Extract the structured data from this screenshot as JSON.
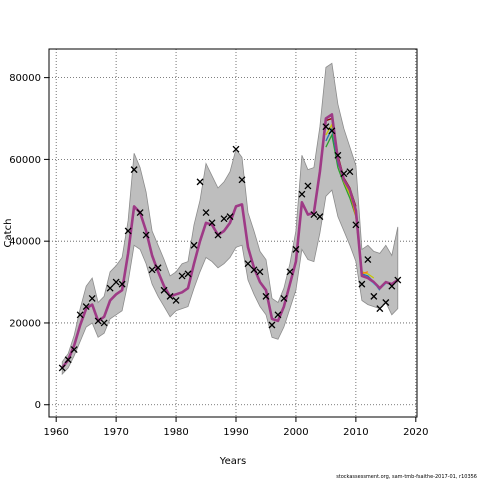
{
  "chart_data": {
    "type": "line",
    "xlabel": "Years",
    "ylabel": "Catch",
    "xlim": [
      1958.8,
      2020.2
    ],
    "ylim": [
      -3000,
      87000
    ],
    "x_ticks": [
      1960,
      1970,
      1980,
      1990,
      2000,
      2010,
      2020
    ],
    "y_ticks": [
      0,
      20000,
      40000,
      60000,
      80000
    ],
    "grid": true,
    "footer": "stockassessment.org, sam-tmb-fsaithe-2017-01, r10356",
    "colors": {
      "band": "#bebebe",
      "band_edge": "#8c8c8c",
      "main_line": "#9e3a86",
      "points": "#000000"
    },
    "observed": {
      "x": [
        1961,
        1962,
        1963,
        1964,
        1965,
        1966,
        1967,
        1968,
        1969,
        1970,
        1971,
        1972,
        1973,
        1974,
        1975,
        1976,
        1977,
        1978,
        1979,
        1980,
        1981,
        1982,
        1983,
        1984,
        1985,
        1986,
        1987,
        1988,
        1989,
        1990,
        1991,
        1992,
        1993,
        1994,
        1995,
        1996,
        1997,
        1998,
        1999,
        2000,
        2001,
        2002,
        2003,
        2004,
        2005,
        2006,
        2007,
        2008,
        2009,
        2010,
        2011,
        2012,
        2013,
        2014,
        2015,
        2016,
        2017
      ],
      "y": [
        9000,
        11000,
        13500,
        22000,
        24000,
        26000,
        20500,
        20000,
        28500,
        30000,
        29500,
        42500,
        57500,
        47000,
        41500,
        33000,
        33500,
        28000,
        26500,
        25500,
        31500,
        32000,
        39000,
        54500,
        47000,
        44500,
        41500,
        45500,
        46000,
        62500,
        55000,
        34500,
        33000,
        32500,
        26500,
        19500,
        22000,
        26000,
        32500,
        38000,
        51500,
        53500,
        46500,
        46000,
        68000,
        67000,
        61000,
        56500,
        57000,
        44000,
        29500,
        35500,
        26500,
        23500,
        25000,
        29000,
        30500
      ]
    },
    "estimate": {
      "x": [
        1961,
        1962,
        1963,
        1964,
        1965,
        1966,
        1967,
        1968,
        1969,
        1970,
        1971,
        1972,
        1973,
        1974,
        1975,
        1976,
        1977,
        1978,
        1979,
        1980,
        1981,
        1982,
        1983,
        1984,
        1985,
        1986,
        1987,
        1988,
        1989,
        1990,
        1991,
        1992,
        1993,
        1994,
        1995,
        1996,
        1997,
        1998,
        1999,
        2000,
        2001,
        2002,
        2003,
        2004,
        2005,
        2006,
        2007,
        2008,
        2009,
        2010,
        2011,
        2012,
        2013,
        2014,
        2015,
        2016,
        2017
      ],
      "y": [
        9000,
        11000,
        14500,
        19500,
        23500,
        24500,
        20500,
        21500,
        25500,
        27000,
        28000,
        37000,
        48500,
        47000,
        42500,
        36500,
        32500,
        29000,
        26500,
        27000,
        27500,
        28500,
        34500,
        40000,
        44500,
        44000,
        41500,
        42500,
        44500,
        48500,
        49000,
        38500,
        33500,
        30000,
        28000,
        21000,
        20500,
        24000,
        29500,
        35000,
        49500,
        46500,
        47000,
        57000,
        70000,
        71000,
        60000,
        55000,
        52500,
        47500,
        31500,
        31000,
        30000,
        28500,
        30000,
        29500,
        30500
      ]
    },
    "band_upper": {
      "x": [
        1961,
        1962,
        1963,
        1964,
        1965,
        1966,
        1967,
        1968,
        1969,
        1970,
        1971,
        1972,
        1973,
        1974,
        1975,
        1976,
        1977,
        1978,
        1979,
        1980,
        1981,
        1982,
        1983,
        1984,
        1985,
        1986,
        1987,
        1988,
        1989,
        1990,
        1991,
        1992,
        1993,
        1994,
        1995,
        1996,
        1997,
        1998,
        1999,
        2000,
        2001,
        2002,
        2003,
        2004,
        2005,
        2006,
        2007,
        2008,
        2009,
        2010,
        2011,
        2012,
        2013,
        2014,
        2015,
        2016,
        2017
      ],
      "y": [
        10500,
        12500,
        17000,
        23500,
        29000,
        31000,
        25000,
        26500,
        32500,
        34000,
        36000,
        45000,
        61500,
        58000,
        52000,
        42500,
        39000,
        35500,
        31500,
        32500,
        34500,
        35000,
        44000,
        50000,
        59000,
        56000,
        53000,
        54500,
        57000,
        62500,
        60500,
        47000,
        42500,
        37500,
        35500,
        26000,
        25000,
        28500,
        34500,
        42500,
        61000,
        57500,
        58000,
        68000,
        82500,
        83500,
        73500,
        67500,
        63000,
        58500,
        38000,
        39000,
        37500,
        37000,
        39000,
        36500,
        43500
      ]
    },
    "band_lower": {
      "x": [
        1961,
        1962,
        1963,
        1964,
        1965,
        1966,
        1967,
        1968,
        1969,
        1970,
        1971,
        1972,
        1973,
        1974,
        1975,
        1976,
        1977,
        1978,
        1979,
        1980,
        1981,
        1982,
        1983,
        1984,
        1985,
        1986,
        1987,
        1988,
        1989,
        1990,
        1991,
        1992,
        1993,
        1994,
        1995,
        1996,
        1997,
        1998,
        1999,
        2000,
        2001,
        2002,
        2003,
        2004,
        2005,
        2006,
        2007,
        2008,
        2009,
        2010,
        2011,
        2012,
        2013,
        2014,
        2015,
        2016,
        2017
      ],
      "y": [
        7500,
        9000,
        12000,
        15500,
        19000,
        20000,
        16500,
        17500,
        21000,
        22000,
        23000,
        30000,
        39000,
        38000,
        34500,
        29500,
        26500,
        24000,
        21500,
        23000,
        23500,
        24000,
        28500,
        32500,
        36000,
        35000,
        33500,
        34500,
        36000,
        38500,
        39000,
        30500,
        27000,
        24000,
        22000,
        16500,
        16000,
        19000,
        23500,
        28000,
        38000,
        35500,
        35000,
        42000,
        51000,
        52500,
        46000,
        42500,
        39000,
        35000,
        25500,
        24500,
        24000,
        23500,
        25000,
        22000,
        23500
      ]
    },
    "retro_series": [
      {
        "color": "#2ca02c",
        "x": [
          2005,
          2006,
          2007,
          2008,
          2009,
          2010,
          2011,
          2012
        ],
        "y": [
          63000,
          66000,
          58000,
          54000,
          50500,
          46000,
          31500,
          31000
        ]
      },
      {
        "color": "#1f77b4",
        "x": [
          2005,
          2006,
          2007,
          2008,
          2009,
          2010,
          2011,
          2012,
          2013,
          2014
        ],
        "y": [
          64500,
          67500,
          59000,
          55500,
          52000,
          46500,
          32000,
          31500,
          30000,
          28000
        ]
      },
      {
        "color": "#c8c800",
        "x": [
          2005,
          2006,
          2007,
          2008,
          2009,
          2010,
          2011,
          2012,
          2013
        ],
        "y": [
          66000,
          68500,
          60000,
          54500,
          51500,
          47000,
          32500,
          32000,
          31000
        ]
      },
      {
        "color": "#ff7f0e",
        "x": [
          2009,
          2010,
          2011,
          2012
        ],
        "y": [
          52000,
          46000,
          32000,
          32500
        ]
      },
      {
        "color": "#5fd3e6",
        "x": [
          2012,
          2013,
          2014,
          2015
        ],
        "y": [
          31000,
          29500,
          28500,
          29500
        ]
      },
      {
        "color": "#8b0000",
        "x": [
          2004,
          2005,
          2006,
          2007,
          2008,
          2009,
          2010
        ],
        "y": [
          57500,
          69500,
          70000,
          61000,
          55500,
          53000,
          48500
        ]
      }
    ]
  }
}
